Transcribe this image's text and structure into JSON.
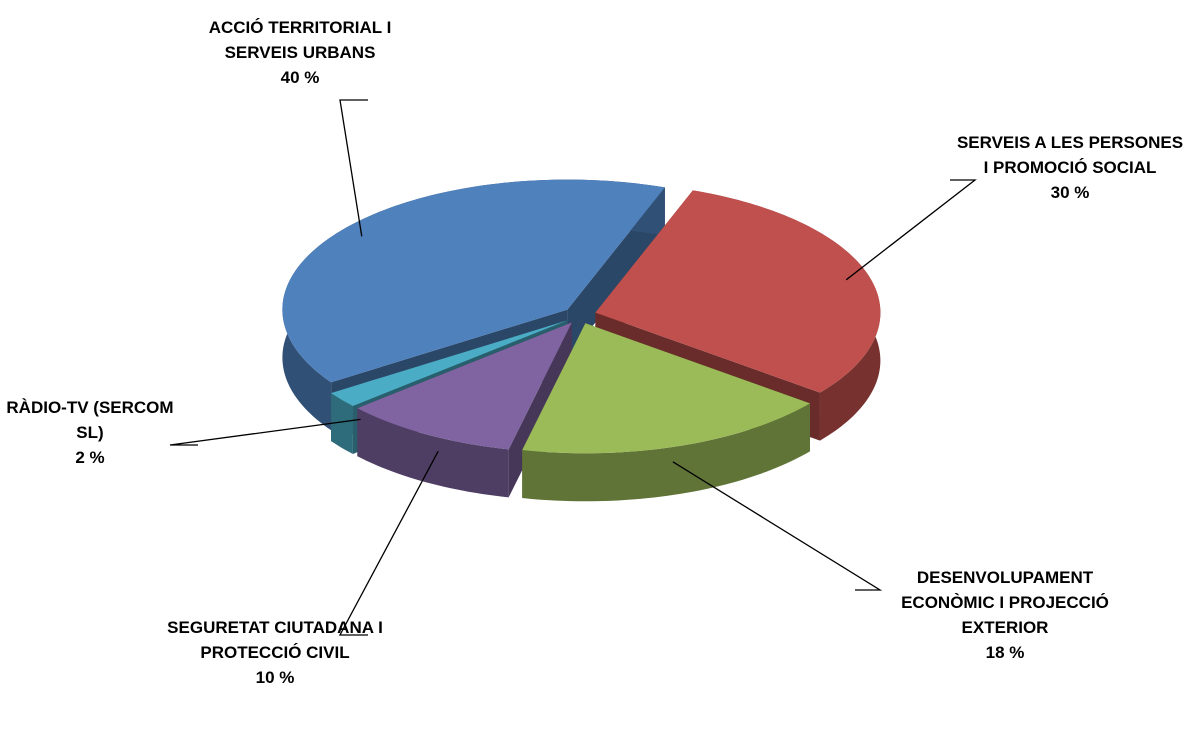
{
  "chart_data": {
    "type": "pie3d",
    "categories": [
      "SERVEIS A LES PERSONES I PROMOCIÓ SOCIAL",
      "DESENVOLUPAMENT ECONÒMIC I PROJECCIÓ EXTERIOR",
      "SEGURETAT CIUTADANA I PROTECCIÓ CIVIL",
      "RÀDIO-TV (SERCOM SL)",
      "ACCIÓ TERRITORIAL I SERVEIS URBANS"
    ],
    "values": [
      30,
      18,
      10,
      2,
      40
    ],
    "value_labels": [
      "30 %",
      "18 %",
      "10 %",
      "2 %",
      "40 %"
    ],
    "colors": [
      "#c0504d",
      "#9bbb59",
      "#8064a2",
      "#4bacc6",
      "#4f81bd"
    ]
  }
}
